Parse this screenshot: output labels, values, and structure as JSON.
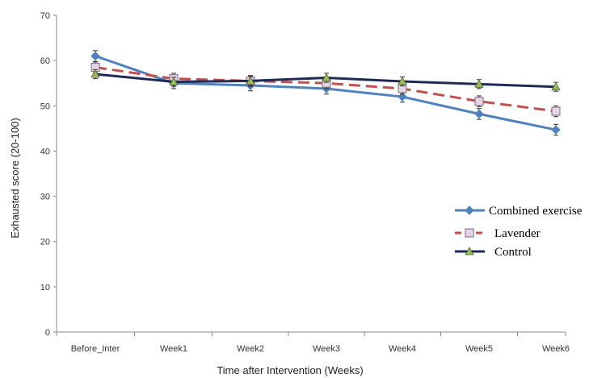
{
  "chart_data": {
    "type": "line",
    "categories": [
      "Before_Inter",
      "Week1",
      "Week2",
      "Week3",
      "Week4",
      "Week5",
      "Week6"
    ],
    "xlabel": "Time after Intervention (Weeks)",
    "ylabel": "Exhausted score (20-100)",
    "ylim": [
      0,
      70
    ],
    "yticks": [
      0,
      10,
      20,
      30,
      40,
      50,
      60,
      70
    ],
    "grid": false,
    "legend_position": "right",
    "series": [
      {
        "name": "Combined exercise",
        "values": [
          61,
          55,
          54.5,
          53.8,
          52,
          48.2,
          44.7
        ],
        "errors": [
          1.2,
          1.2,
          1.2,
          1.2,
          1.2,
          1.2,
          1.2
        ],
        "color": "#4f81bd",
        "marker": "diamond",
        "dash": "solid"
      },
      {
        "name": "Lavender",
        "values": [
          58.5,
          56,
          55.5,
          55,
          53.8,
          51,
          48.8
        ],
        "errors": [
          1.2,
          1.2,
          1.2,
          1.2,
          1.2,
          1.2,
          1.2
        ],
        "color": "#c0504d",
        "marker": "square",
        "dash": "dashed"
      },
      {
        "name": "Control",
        "values": [
          57,
          55.3,
          55.5,
          56.2,
          55.4,
          54.8,
          54.2
        ],
        "errors": [
          1.0,
          1.0,
          1.0,
          1.0,
          1.0,
          1.0,
          1.0
        ],
        "color": "#1f2a55",
        "marker": "triangle",
        "dash": "solid"
      }
    ]
  }
}
